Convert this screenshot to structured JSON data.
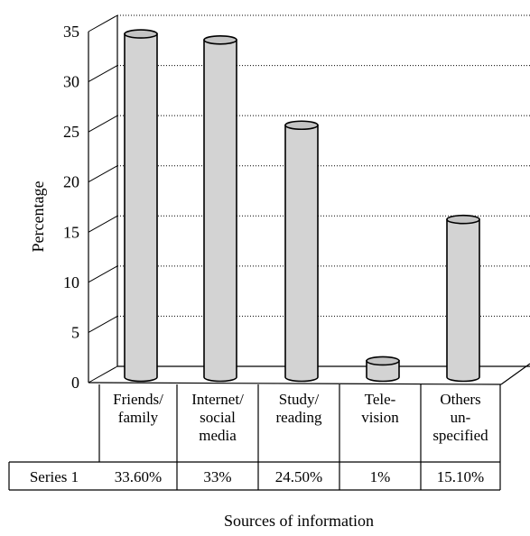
{
  "chart_data": {
    "type": "bar",
    "style": "3d-cylinder",
    "categories": [
      [
        "Friends/",
        "family"
      ],
      [
        "Internet/",
        "social",
        "media"
      ],
      [
        "Study/",
        "reading"
      ],
      [
        "Tele-",
        "vision"
      ],
      [
        "Others",
        "un-",
        "specified"
      ]
    ],
    "series": [
      {
        "name": "Series 1",
        "values": [
          33.6,
          33,
          24.5,
          1,
          15.1
        ],
        "value_labels": [
          "33.60%",
          "33%",
          "24.50%",
          "1%",
          "15.10%"
        ]
      }
    ],
    "xlabel": "Sources of information",
    "ylabel": "Percentage",
    "ylim": [
      0,
      35
    ],
    "yticks": [
      "0",
      "5",
      "10",
      "15",
      "20",
      "25",
      "30",
      "35"
    ],
    "grid": true,
    "data_table": true,
    "colors": {
      "bar_fill": "#d3d3d3",
      "bar_top": "#c4c4c4",
      "stroke": "#000000",
      "grid": "#000000"
    }
  }
}
